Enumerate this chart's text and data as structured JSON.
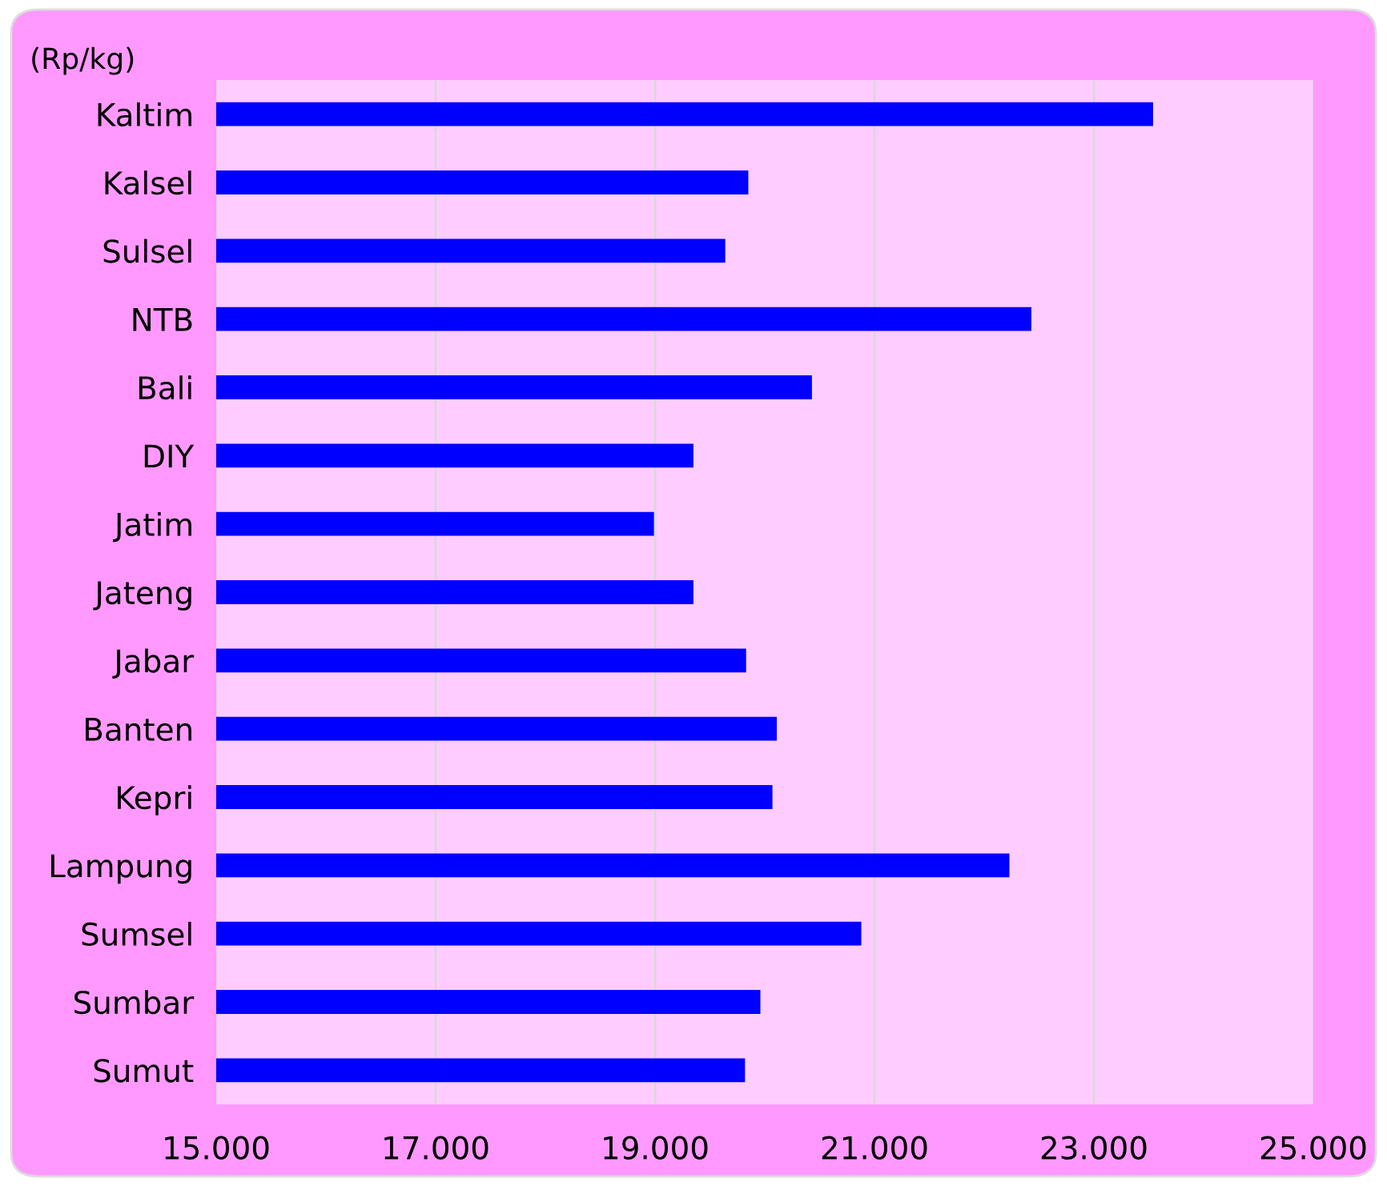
{
  "chart_data": {
    "type": "bar",
    "orientation": "horizontal",
    "ylabel": "(Rp/kg)",
    "categories": [
      "Kaltim",
      "Kalsel",
      "Sulsel",
      "NTB",
      "Bali",
      "DIY",
      "Jatim",
      "Jateng",
      "Jabar",
      "Banten",
      "Kepri",
      "Lampung",
      "Sumsel",
      "Sumbar",
      "Sumut"
    ],
    "values": [
      23540,
      19850,
      19640,
      22430,
      20430,
      19350,
      18990,
      19350,
      19830,
      20110,
      20070,
      22230,
      20880,
      19960,
      19820
    ],
    "color": "#0000ff",
    "xlim": [
      15000,
      25000
    ],
    "xticks": [
      {
        "value": 15000,
        "label": "15.000"
      },
      {
        "value": 17000,
        "label": "17.000"
      },
      {
        "value": 19000,
        "label": "19.000"
      },
      {
        "value": 21000,
        "label": "21.000"
      },
      {
        "value": 23000,
        "label": "23.000"
      },
      {
        "value": 25000,
        "label": "25.000"
      }
    ],
    "grid": "x",
    "legend": false
  }
}
